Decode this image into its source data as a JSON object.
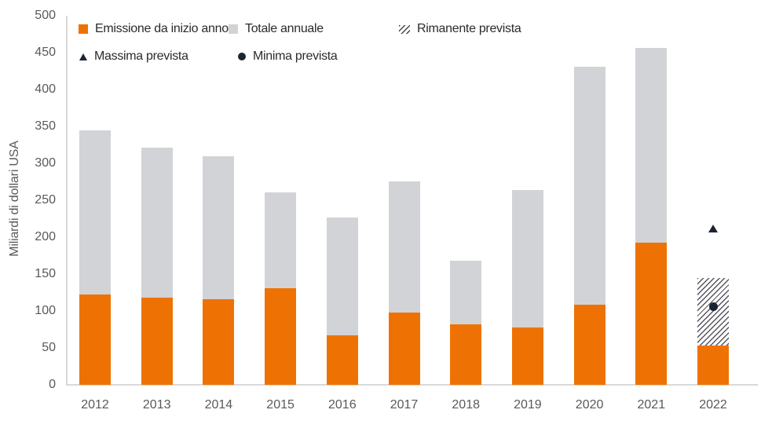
{
  "colors": {
    "background": "#FFFFFF",
    "orange": "#EE7203",
    "gray_bar": "#D2D3D6",
    "axis_line": "#D9D9D9",
    "tick_text": "#595959",
    "legend_text": "#2B2B2B",
    "marker_navy": "#1B2433",
    "hatch_line": "#55555F"
  },
  "chart_data": {
    "type": "bar",
    "stacked": true,
    "title": "",
    "ylabel": "Miliardi di dollari USA",
    "ylim": [
      0,
      500
    ],
    "ytick_step": 50,
    "grid": false,
    "legend_position": "top-left",
    "categories": [
      "2012",
      "2013",
      "2014",
      "2015",
      "2016",
      "2017",
      "2018",
      "2019",
      "2020",
      "2021",
      "2022"
    ],
    "series": [
      {
        "name": "Emissione da inizio anno",
        "role": "year-to-date-issuance",
        "values": [
          122,
          118,
          116,
          131,
          67,
          98,
          82,
          78,
          108,
          193,
          53
        ]
      },
      {
        "name": "Totale annuale",
        "role": "annual-total",
        "values": [
          345,
          321,
          310,
          261,
          227,
          276,
          168,
          264,
          431,
          456,
          null
        ]
      },
      {
        "name": "Rimanente prevista",
        "role": "forecast-remainder-top",
        "values": [
          null,
          null,
          null,
          null,
          null,
          null,
          null,
          null,
          null,
          null,
          145
        ]
      }
    ],
    "markers": [
      {
        "name": "Massima prevista",
        "shape": "triangle",
        "category": "2022",
        "value": 212
      },
      {
        "name": "Minima prevista",
        "shape": "circle",
        "category": "2022",
        "value": 106
      }
    ],
    "legend": {
      "items": [
        {
          "label": "Emissione da inizio anno",
          "swatch": "orange-square"
        },
        {
          "label": "Totale annuale",
          "swatch": "gray-square"
        },
        {
          "label": "Rimanente prevista",
          "swatch": "hatch"
        },
        {
          "label": "Massima prevista",
          "swatch": "triangle"
        },
        {
          "label": "Minima prevista",
          "swatch": "circle"
        }
      ]
    }
  }
}
